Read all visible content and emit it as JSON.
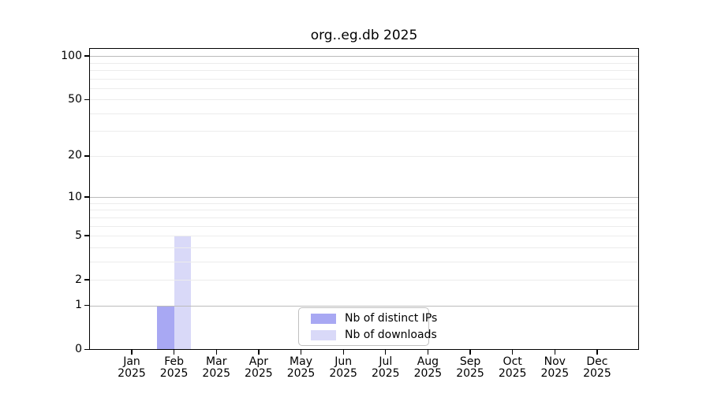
{
  "chart_data": {
    "type": "bar",
    "title": "org..eg.db 2025",
    "categories": [
      "Jan 2025",
      "Feb 2025",
      "Mar 2025",
      "Apr 2025",
      "May 2025",
      "Jun 2025",
      "Jul 2025",
      "Aug 2025",
      "Sep 2025",
      "Oct 2025",
      "Nov 2025",
      "Dec 2025"
    ],
    "series": [
      {
        "name": "Nb of distinct IPs",
        "color": "#a8a8f3",
        "values": [
          0,
          1,
          0,
          0,
          0,
          0,
          0,
          0,
          0,
          0,
          0,
          0
        ]
      },
      {
        "name": "Nb of downloads",
        "color": "#d9d9f8",
        "values": [
          0,
          5,
          0,
          0,
          0,
          0,
          0,
          0,
          0,
          0,
          0,
          0
        ]
      }
    ],
    "yscale": "log1p",
    "ylim": [
      0,
      113
    ],
    "y_tick_values": [
      100,
      50,
      20,
      10,
      5,
      2,
      1,
      0
    ],
    "y_major_gridlines": [
      1,
      10,
      100
    ],
    "y_minor_gridlines": [
      2,
      3,
      4,
      5,
      6,
      7,
      8,
      9,
      20,
      30,
      40,
      50,
      60,
      70,
      80,
      90
    ],
    "grid": true,
    "legend_position": "lower-center-inside",
    "colors": {
      "axis": "#000000",
      "major_grid": "#bbbbbb",
      "minor_grid": "#ececec",
      "background": "#ffffff"
    }
  }
}
